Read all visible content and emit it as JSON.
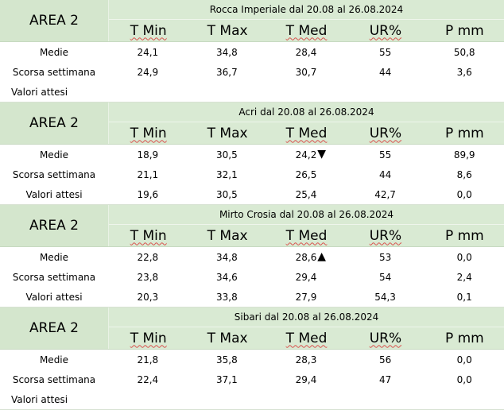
{
  "columns": [
    "T Min",
    "T Max",
    "T Med",
    "UR%",
    "P mm"
  ],
  "area_label": "AREA 2",
  "row_labels": {
    "medie": "Medie",
    "scorsa": "Scorsa settimana",
    "attesi": "Valori attesi"
  },
  "blocks": [
    {
      "title": "Rocca Imperiale  dal 20.08 al 26.08.2024",
      "medie": [
        "24,1",
        "34,8",
        "28,4",
        "55",
        "50,8"
      ],
      "scorsa": [
        "24,9",
        "36,7",
        "30,7",
        "44",
        "3,6"
      ],
      "attesi": [
        "",
        "",
        "",
        "",
        ""
      ],
      "trend_symbol": ""
    },
    {
      "title": "Acri dal 20.08 al 26.08.2024",
      "medie": [
        "18,9",
        "30,5",
        "24,2",
        "55",
        "89,9"
      ],
      "scorsa": [
        "21,1",
        "32,1",
        "26,5",
        "44",
        "8,6"
      ],
      "attesi": [
        "19,6",
        "30,5",
        "25,4",
        "42,7",
        "0,0"
      ],
      "trend_symbol": "▼"
    },
    {
      "title": "Mirto Crosia dal 20.08 al 26.08.2024",
      "medie": [
        "22,8",
        "34,8",
        "28,6",
        "53",
        "0,0"
      ],
      "scorsa": [
        "23,8",
        "34,6",
        "29,4",
        "54",
        "2,4"
      ],
      "attesi": [
        "20,3",
        "33,8",
        "27,9",
        "54,3",
        "0,1"
      ],
      "trend_symbol": "▲"
    },
    {
      "title": "Sibari dal 20.08 al 26.08.2024",
      "medie": [
        "21,8",
        "35,8",
        "28,3",
        "56",
        "0,0"
      ],
      "scorsa": [
        "22,4",
        "37,1",
        "29,4",
        "47",
        "0,0"
      ],
      "attesi": [
        "",
        "",
        "",
        "",
        ""
      ],
      "trend_symbol": ""
    }
  ]
}
